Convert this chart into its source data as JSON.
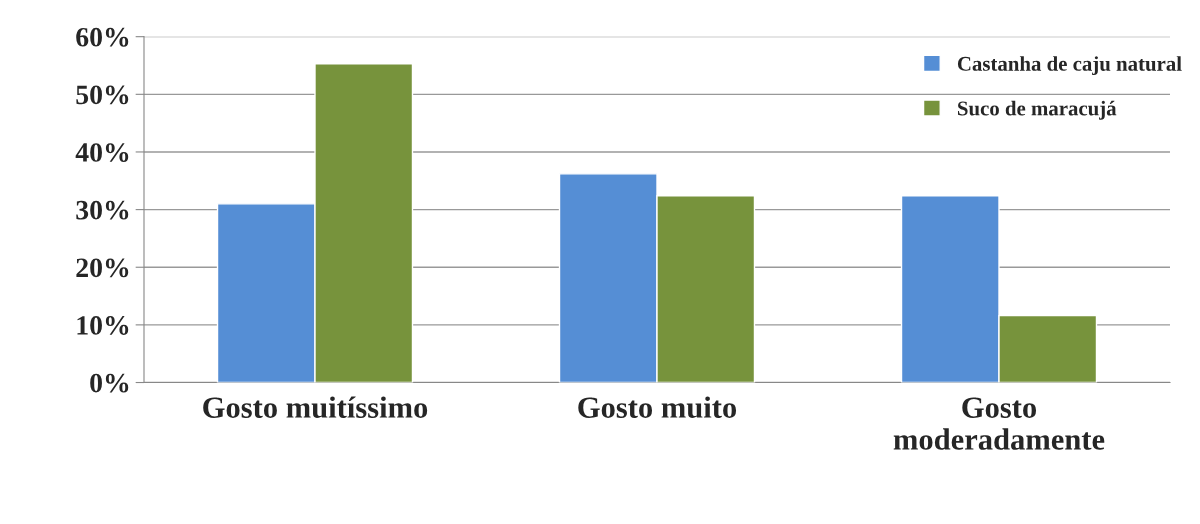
{
  "chart_data": {
    "type": "bar",
    "categories": [
      "Gosto muitíssimo",
      "Gosto muito",
      "Gosto\nmoderadamente"
    ],
    "series": [
      {
        "name": "Castanha de caju natural",
        "color": "#558ed5",
        "values": [
          31,
          36.2,
          32.4
        ]
      },
      {
        "name": "Suco de maracujá",
        "color": "#77933c",
        "values": [
          55.3,
          32.4,
          11.6
        ]
      }
    ],
    "ylim": [
      0,
      60
    ],
    "yticks": [
      {
        "value": 0,
        "label": "0%"
      },
      {
        "value": 10,
        "label": "10%"
      },
      {
        "value": 20,
        "label": "20%"
      },
      {
        "value": 30,
        "label": "30%"
      },
      {
        "value": 40,
        "label": "40%"
      },
      {
        "value": 50,
        "label": "50%"
      },
      {
        "value": 60,
        "label": "60%"
      }
    ],
    "grid": "y",
    "legend": "top right"
  }
}
